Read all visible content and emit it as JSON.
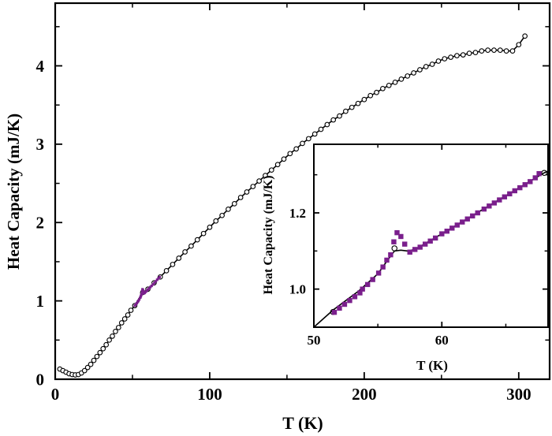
{
  "chart_data": [
    {
      "type": "scatter",
      "xlabel": "T (K)",
      "ylabel": "Heat Capacity (mJ/K)",
      "xlim": [
        0,
        320
      ],
      "ylim": [
        0,
        4.8
      ],
      "xticks": [
        "0",
        "100",
        "200",
        "300"
      ],
      "xtick_values": [
        0,
        100,
        200,
        300
      ],
      "yticks": [
        "0",
        "1",
        "2",
        "3",
        "4"
      ],
      "ytick_values": [
        0,
        1,
        2,
        3,
        4
      ],
      "grid": false,
      "series": [
        {
          "marker": "open-circle",
          "color": "#000000",
          "line": true,
          "x": [
            3,
            5,
            7,
            9,
            11,
            13,
            15,
            17,
            19,
            21,
            23,
            25,
            27,
            29,
            31,
            33,
            35,
            37,
            39,
            41,
            43,
            45,
            47,
            49,
            51.5,
            56.6,
            60,
            64,
            68,
            72,
            76,
            80,
            84,
            88,
            92,
            96,
            100,
            104,
            108,
            112,
            116,
            120,
            124,
            128,
            132,
            136,
            140,
            144,
            148,
            152,
            156,
            160,
            164,
            168,
            172,
            176,
            180,
            184,
            188,
            192,
            196,
            200,
            204,
            208,
            212,
            216,
            220,
            224,
            228,
            232,
            236,
            240,
            244,
            248,
            252,
            256,
            260,
            264,
            268,
            272,
            276,
            280,
            284,
            288,
            292,
            296,
            300,
            304
          ],
          "y": [
            0.13,
            0.11,
            0.09,
            0.07,
            0.06,
            0.055,
            0.06,
            0.08,
            0.11,
            0.15,
            0.19,
            0.24,
            0.29,
            0.34,
            0.39,
            0.44,
            0.5,
            0.55,
            0.61,
            0.66,
            0.72,
            0.77,
            0.82,
            0.88,
            0.94,
            1.107,
            1.15,
            1.23,
            1.305,
            1.385,
            1.465,
            1.545,
            1.625,
            1.7,
            1.78,
            1.86,
            1.94,
            2.02,
            2.09,
            2.17,
            2.24,
            2.32,
            2.39,
            2.46,
            2.53,
            2.6,
            2.67,
            2.74,
            2.81,
            2.88,
            2.94,
            3.01,
            3.07,
            3.13,
            3.19,
            3.25,
            3.31,
            3.36,
            3.42,
            3.47,
            3.52,
            3.57,
            3.62,
            3.66,
            3.71,
            3.75,
            3.79,
            3.83,
            3.87,
            3.91,
            3.95,
            3.99,
            4.02,
            4.06,
            4.09,
            4.11,
            4.13,
            4.14,
            4.16,
            4.17,
            4.19,
            4.2,
            4.2,
            4.2,
            4.19,
            4.19,
            4.27,
            4.38
          ]
        },
        {
          "marker": "filled-square",
          "color": "#7a1f8c",
          "line": false,
          "x": [
            51.6,
            52.2,
            52.8,
            53.4,
            53.8,
            54.4,
            55.06,
            55.4,
            55.7,
            56.0,
            56.25,
            56.5,
            56.8,
            57.1,
            57.5,
            57.9,
            58.5,
            59.2,
            60,
            60.8,
            61.6,
            62.4,
            63.3,
            64.2,
            65.1,
            66,
            66.8,
            67.6
          ],
          "y": [
            0.939,
            0.955,
            0.97,
            0.987,
            1.0,
            1.018,
            1.042,
            1.058,
            1.076,
            1.09,
            1.124,
            1.148,
            1.138,
            1.118,
            1.097,
            1.104,
            1.115,
            1.128,
            1.145,
            1.16,
            1.176,
            1.192,
            1.21,
            1.23,
            1.25,
            1.27,
            1.287,
            1.303
          ]
        }
      ]
    },
    {
      "type": "scatter",
      "placement": "inset-bottom-right",
      "xlabel": "T (K)",
      "ylabel": "Heat Capacity (mJ/K)",
      "xlim": [
        50,
        68.3
      ],
      "ylim": [
        0.9,
        1.38
      ],
      "xticks": [
        "50",
        "60"
      ],
      "xtick_values": [
        50,
        60
      ],
      "yticks": [
        "1.0",
        "1.2"
      ],
      "ytick_values": [
        1.0,
        1.2
      ],
      "grid": false,
      "series": [
        {
          "marker": "open-circle",
          "color": "#000000",
          "x": [
            51.5,
            56.3,
            68
          ],
          "y": [
            0.94,
            1.107,
            1.305
          ]
        },
        {
          "marker": "none",
          "line": true,
          "color": "#000000",
          "x": [
            50,
            51.5,
            53.5,
            55.0,
            55.7,
            56.3,
            56.8,
            57.3,
            57.9,
            60,
            64,
            68,
            68.6
          ],
          "y": [
            0.9,
            0.945,
            0.995,
            1.04,
            1.073,
            1.1,
            1.102,
            1.1,
            1.104,
            1.145,
            1.225,
            1.305,
            1.315
          ]
        },
        {
          "marker": "filled-square",
          "color": "#7a1f8c",
          "line": false,
          "x": [
            51.6,
            52.0,
            52.4,
            52.8,
            53.2,
            53.6,
            53.8,
            54.2,
            54.6,
            55.06,
            55.4,
            55.7,
            56.0,
            56.25,
            56.5,
            56.8,
            57.1,
            57.5,
            57.9,
            58.3,
            58.7,
            59.1,
            59.5,
            60,
            60.4,
            60.8,
            61.2,
            61.6,
            62.0,
            62.4,
            62.8,
            63.3,
            63.7,
            64.1,
            64.5,
            64.9,
            65.3,
            65.7,
            66.1,
            66.5,
            66.9,
            67.3,
            67.6
          ],
          "y": [
            0.939,
            0.95,
            0.96,
            0.97,
            0.98,
            0.99,
            1.0,
            1.012,
            1.025,
            1.042,
            1.058,
            1.076,
            1.09,
            1.124,
            1.148,
            1.138,
            1.118,
            1.097,
            1.104,
            1.11,
            1.118,
            1.126,
            1.134,
            1.145,
            1.152,
            1.16,
            1.168,
            1.176,
            1.184,
            1.192,
            1.2,
            1.21,
            1.218,
            1.226,
            1.234,
            1.242,
            1.25,
            1.258,
            1.266,
            1.274,
            1.282,
            1.292,
            1.303
          ]
        }
      ]
    }
  ]
}
